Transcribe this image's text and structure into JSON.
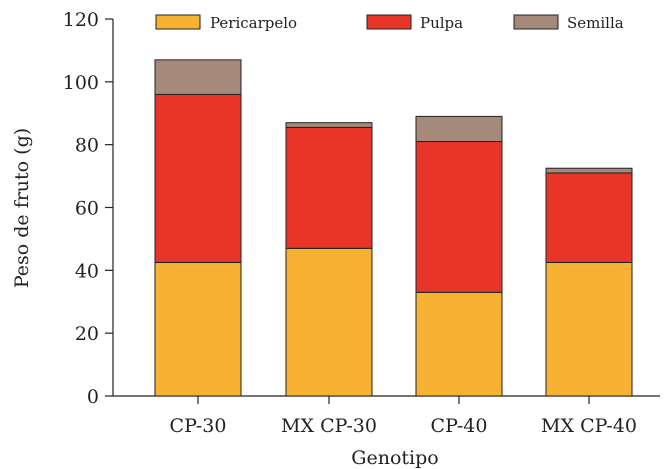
{
  "chart_data": {
    "type": "bar",
    "stacked": true,
    "categories": [
      "CP-30",
      "MX CP-30",
      "CP-40",
      "MX CP-40"
    ],
    "series": [
      {
        "name": "Pericarpelo",
        "color": "#F7B233",
        "values": [
          42.5,
          47,
          33,
          42.5
        ]
      },
      {
        "name": "Pulpa",
        "color": "#E8352A",
        "values": [
          53.5,
          38.5,
          48,
          28.5
        ]
      },
      {
        "name": "Semilla",
        "color": "#A58A7C",
        "values": [
          11,
          1.5,
          8,
          1.5
        ]
      }
    ],
    "xlabel": "Genotipo",
    "ylabel": "Peso de fruto (g)",
    "ylim": [
      0,
      120
    ],
    "yticks": [
      0,
      20,
      40,
      60,
      80,
      100,
      120
    ],
    "grid": false,
    "legend_position": "top"
  }
}
